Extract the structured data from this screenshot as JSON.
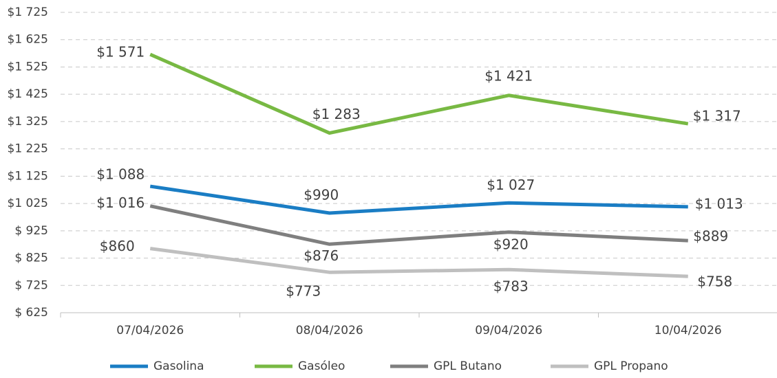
{
  "chart_data": {
    "type": "line",
    "categories": [
      "07/04/2026",
      "08/04/2026",
      "09/04/2026",
      "10/04/2026"
    ],
    "series": [
      {
        "name": "Gasolina",
        "color": "#1a7dc4",
        "values": [
          1088,
          990,
          1027,
          1013
        ],
        "value_labels": [
          "$1 088",
          "$990",
          "$1 027",
          "$1 013"
        ]
      },
      {
        "name": "Gasóleo",
        "color": "#78b943",
        "values": [
          1571,
          1283,
          1421,
          1317
        ],
        "value_labels": [
          "$1 571",
          "$1 283",
          "$1 421",
          "$1 317"
        ]
      },
      {
        "name": "GPL Butano",
        "color": "#7f7f7f",
        "values": [
          1016,
          876,
          920,
          889
        ],
        "value_labels": [
          "$1 016",
          "$876",
          "$920",
          "$889"
        ]
      },
      {
        "name": "GPL Propano",
        "color": "#bfbfbf",
        "values": [
          860,
          773,
          783,
          758
        ],
        "value_labels": [
          "$860",
          "$773",
          "$783",
          "$758"
        ]
      }
    ],
    "ylim": [
      625,
      1725
    ],
    "yticks": [
      {
        "value": 625,
        "label": "$ 625"
      },
      {
        "value": 725,
        "label": "$ 725"
      },
      {
        "value": 825,
        "label": "$ 825"
      },
      {
        "value": 925,
        "label": "$ 925"
      },
      {
        "value": 1025,
        "label": "$1 025"
      },
      {
        "value": 1125,
        "label": "$1 125"
      },
      {
        "value": 1225,
        "label": "$1 225"
      },
      {
        "value": 1325,
        "label": "$1 325"
      },
      {
        "value": 1425,
        "label": "$1 425"
      },
      {
        "value": 1525,
        "label": "$1 525"
      },
      {
        "value": 1625,
        "label": "$1 625"
      },
      {
        "value": 1725,
        "label": "$1 725"
      }
    ],
    "grid": true,
    "legend": "bottom"
  }
}
